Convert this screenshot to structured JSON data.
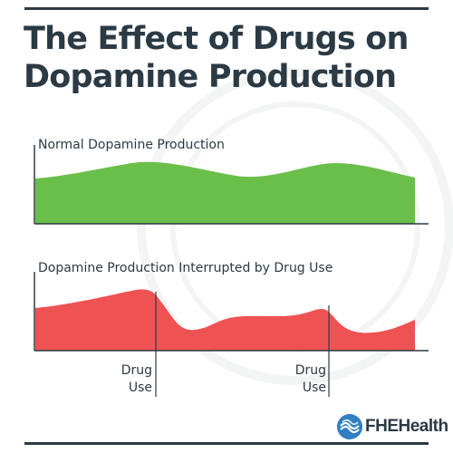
{
  "title": {
    "line1": "The Effect of Drugs on",
    "line2": "Dopamine Production"
  },
  "panels": {
    "normal": {
      "label": "Normal Dopamine Production",
      "color": "#6abf4b"
    },
    "interrupted": {
      "label": "Dopamine Production Interrupted by Drug Use",
      "color": "#ee5253"
    }
  },
  "markers": [
    {
      "line1": "Drug",
      "line2": "Use"
    },
    {
      "line1": "Drug",
      "line2": "Use"
    }
  ],
  "brand": {
    "name": "FHEHealth",
    "icon": "wave-icon",
    "color": "#2f7fc1"
  },
  "colors": {
    "text": "#2b3a44",
    "axis": "#2b3a44"
  }
}
